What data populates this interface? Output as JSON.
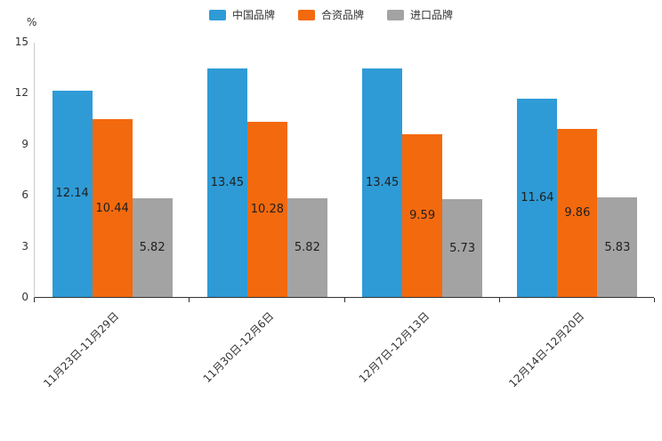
{
  "unit_label": "%",
  "chart_data": {
    "type": "bar",
    "title": "",
    "categories": [
      "11月23日-11月29日",
      "11月30日-12月6日",
      "12月7日-12月13日",
      "12月14日-12月20日"
    ],
    "series": [
      {
        "name": "中国品牌",
        "color": "#2e9bd6",
        "values": [
          12.14,
          13.45,
          13.45,
          11.64
        ]
      },
      {
        "name": "合资品牌",
        "color": "#f3690e",
        "values": [
          10.44,
          10.28,
          9.59,
          9.86
        ]
      },
      {
        "name": "进口品牌",
        "color": "#a3a3a3",
        "values": [
          5.82,
          5.82,
          5.73,
          5.83
        ]
      }
    ],
    "xlabel": "",
    "ylabel": "%",
    "ylim": [
      0,
      15
    ],
    "yticks": [
      0,
      3,
      6,
      9,
      12,
      15
    ],
    "grid": false,
    "legend_position": "top",
    "label_position": "inside-center"
  }
}
